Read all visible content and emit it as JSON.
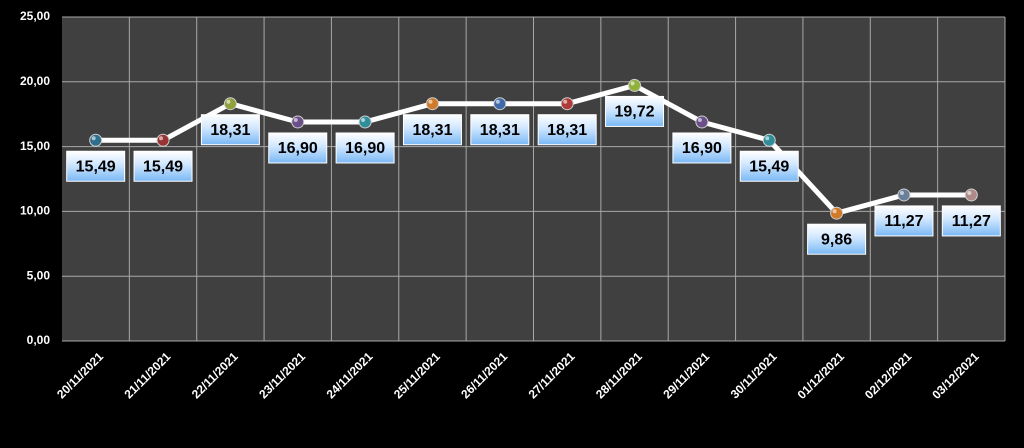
{
  "chart_data": {
    "type": "line",
    "categories": [
      "20/11/2021",
      "21/11/2021",
      "22/11/2021",
      "23/11/2021",
      "24/11/2021",
      "25/11/2021",
      "26/11/2021",
      "27/11/2021",
      "28/11/2021",
      "29/11/2021",
      "30/11/2021",
      "01/12/2021",
      "02/12/2021",
      "03/12/2021"
    ],
    "values": [
      15.49,
      15.49,
      18.31,
      16.9,
      16.9,
      18.31,
      18.31,
      18.31,
      19.72,
      16.9,
      15.49,
      9.86,
      11.27,
      11.27
    ],
    "value_labels": [
      "15,49",
      "15,49",
      "18,31",
      "16,90",
      "16,90",
      "18,31",
      "18,31",
      "18,31",
      "19,72",
      "16,90",
      "15,49",
      "9,86",
      "11,27",
      "11,27"
    ],
    "color": "#ffffff",
    "point_colors": [
      "#2f6f8a",
      "#9a3434",
      "#8fa13a",
      "#6a4f8a",
      "#2f8e9a",
      "#d07a2a",
      "#3f6aa8",
      "#b03a3a",
      "#8fb03a",
      "#6a4f8a",
      "#2f8e9a",
      "#d07a2a",
      "#6a7f9a",
      "#b08a8a"
    ],
    "ylim": [
      0,
      25
    ],
    "yticks": [
      {
        "value": 0,
        "label": "0,00"
      },
      {
        "value": 5,
        "label": "5,00"
      },
      {
        "value": 10,
        "label": "10,00"
      },
      {
        "value": 15,
        "label": "15,00"
      },
      {
        "value": 20,
        "label": "20,00"
      },
      {
        "value": 25,
        "label": "25,00"
      }
    ],
    "grid": true
  }
}
